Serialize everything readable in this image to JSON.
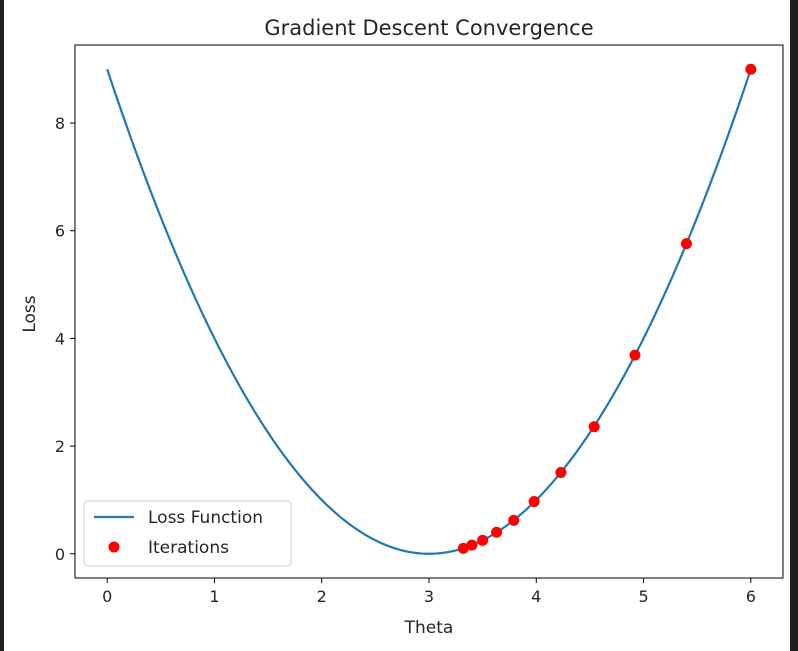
{
  "chart_data": {
    "type": "line",
    "title": "Gradient Descent Convergence",
    "xlabel": "Theta",
    "ylabel": "Loss",
    "xlim": [
      -0.3,
      6.3
    ],
    "ylim": [
      -0.45,
      9.45
    ],
    "xticks": [
      0,
      1,
      2,
      3,
      4,
      5,
      6
    ],
    "yticks": [
      0,
      2,
      4,
      6,
      8
    ],
    "grid": false,
    "legend_position": "lower-left",
    "series": [
      {
        "name": "Loss Function",
        "kind": "line",
        "function": "(theta - 3)^2",
        "x_range": [
          0,
          6
        ],
        "color": "#1f77b4"
      },
      {
        "name": "Iterations",
        "kind": "scatter",
        "color": "#ff0000",
        "points": [
          {
            "x": 6.0,
            "y": 9.0
          },
          {
            "x": 5.4,
            "y": 5.76
          },
          {
            "x": 4.92,
            "y": 3.69
          },
          {
            "x": 4.54,
            "y": 2.36
          },
          {
            "x": 4.23,
            "y": 1.51
          },
          {
            "x": 3.98,
            "y": 0.97
          },
          {
            "x": 3.79,
            "y": 0.62
          },
          {
            "x": 3.63,
            "y": 0.4
          },
          {
            "x": 3.5,
            "y": 0.25
          },
          {
            "x": 3.4,
            "y": 0.16
          },
          {
            "x": 3.32,
            "y": 0.1
          }
        ]
      }
    ]
  }
}
